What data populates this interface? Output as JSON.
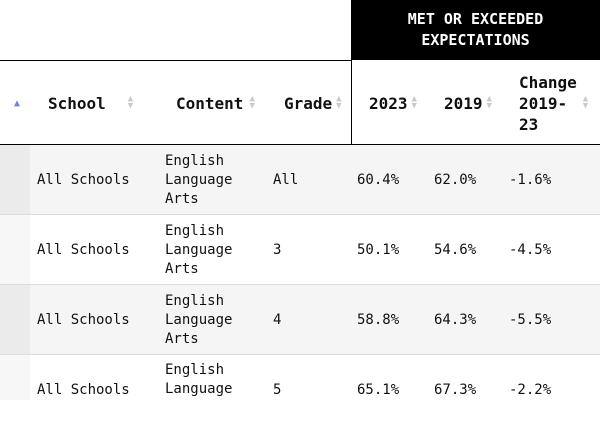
{
  "table": {
    "group_header": "MET OR EXCEEDED\nEXPECTATIONS",
    "columns": {
      "school": "School",
      "content": "Content",
      "grade": "Grade",
      "y2023": "2023",
      "y2019": "2019",
      "change": "Change\n2019-\n23"
    },
    "rows": [
      {
        "school": "All Schools",
        "content": "English\nLanguage\nArts",
        "grade": "All",
        "y2023": "60.4%",
        "y2019": "62.0%",
        "change": "-1.6%"
      },
      {
        "school": "All Schools",
        "content": "English\nLanguage\nArts",
        "grade": "3",
        "y2023": "50.1%",
        "y2019": "54.6%",
        "change": "-4.5%"
      },
      {
        "school": "All Schools",
        "content": "English\nLanguage\nArts",
        "grade": "4",
        "y2023": "58.8%",
        "y2019": "64.3%",
        "change": "-5.5%"
      },
      {
        "school": "All Schools",
        "content": "English\nLanguage",
        "grade": "5",
        "y2023": "65.1%",
        "y2019": "67.3%",
        "change": "-2.2%"
      }
    ]
  },
  "icons": {
    "sort_active": "sort-ascending-icon",
    "sort_inactive": "sort-icon"
  },
  "colors": {
    "header_bg": "#000000",
    "active_sort": "#7b7fd6",
    "row_shade": "#f5f5f5"
  }
}
